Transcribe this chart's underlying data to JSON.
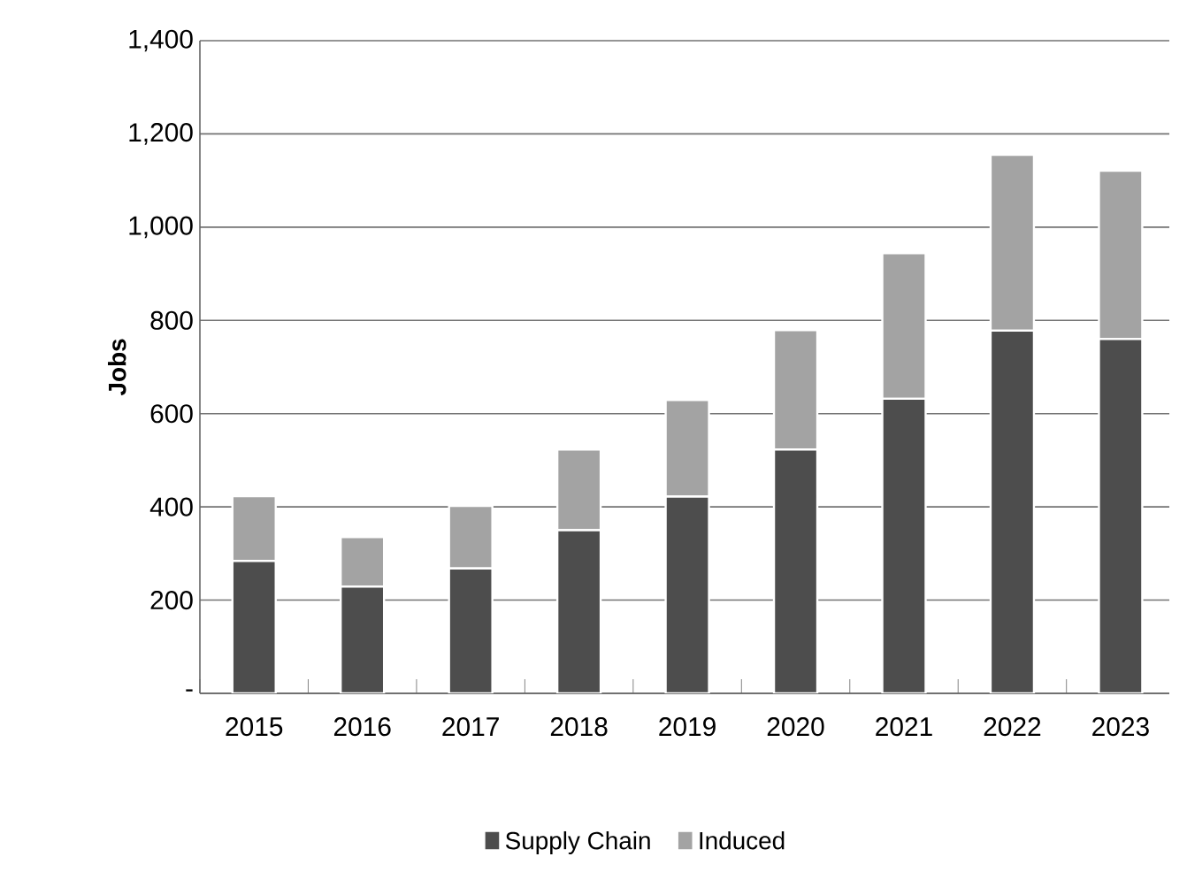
{
  "chart_data": {
    "type": "bar",
    "stacked": true,
    "ylabel": "Jobs",
    "categories": [
      "2015",
      "2016",
      "2017",
      "2018",
      "2019",
      "2020",
      "2021",
      "2022",
      "2023"
    ],
    "series": [
      {
        "name": "Supply Chain",
        "color": "#4d4d4d",
        "values": [
          284,
          229,
          268,
          350,
          422,
          523,
          632,
          778,
          760
        ]
      },
      {
        "name": "Induced",
        "color": "#a3a3a3",
        "values": [
          139,
          106,
          134,
          173,
          207,
          256,
          312,
          377,
          361
        ]
      }
    ],
    "ylim": [
      0,
      1400
    ],
    "yticks": [
      {
        "value": 0,
        "label": "-"
      },
      {
        "value": 200,
        "label": "200"
      },
      {
        "value": 400,
        "label": "400"
      },
      {
        "value": 600,
        "label": "600"
      },
      {
        "value": 800,
        "label": "800"
      },
      {
        "value": 1000,
        "label": "1,000"
      },
      {
        "value": 1200,
        "label": "1,200"
      },
      {
        "value": 1400,
        "label": "1,400"
      }
    ],
    "grid": "y",
    "legend": "bottom"
  }
}
